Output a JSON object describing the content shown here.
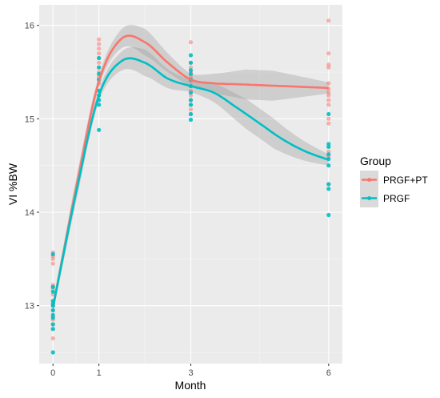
{
  "chart_data": {
    "type": "scatter",
    "xlabel": "Month",
    "ylabel": "VI %BW",
    "x_ticks": [
      0,
      1,
      3,
      6
    ],
    "x_tick_labels": [
      "0",
      "1",
      "3",
      "6"
    ],
    "y_ticks": [
      13,
      14,
      15,
      16
    ],
    "y_tick_labels": [
      "13",
      "14",
      "15",
      "16"
    ],
    "xlim": [
      -0.3,
      6.3
    ],
    "ylim": [
      12.38,
      16.22
    ],
    "grid": true,
    "legend": {
      "title": "Group",
      "position": "right"
    },
    "series": [
      {
        "name": "PRGF+PT",
        "color": "#F8766D",
        "points": [
          [
            0,
            13.57
          ],
          [
            0,
            13.53
          ],
          [
            0,
            13.5
          ],
          [
            0,
            13.45
          ],
          [
            0,
            13.22
          ],
          [
            0,
            13.2
          ],
          [
            0,
            13.18
          ],
          [
            0,
            13.12
          ],
          [
            0,
            13.05
          ],
          [
            0,
            13.0
          ],
          [
            0,
            12.95
          ],
          [
            0,
            12.88
          ],
          [
            0,
            12.85
          ],
          [
            0,
            12.8
          ],
          [
            0,
            12.75
          ],
          [
            0,
            12.65
          ],
          [
            1,
            15.85
          ],
          [
            1,
            15.8
          ],
          [
            1,
            15.75
          ],
          [
            1,
            15.7
          ],
          [
            1,
            15.65
          ],
          [
            1,
            15.6
          ],
          [
            1,
            15.55
          ],
          [
            1,
            15.5
          ],
          [
            1,
            15.45
          ],
          [
            1,
            15.42
          ],
          [
            1,
            15.38
          ],
          [
            3,
            15.82
          ],
          [
            3,
            15.6
          ],
          [
            3,
            15.55
          ],
          [
            3,
            15.5
          ],
          [
            3,
            15.45
          ],
          [
            3,
            15.4
          ],
          [
            3,
            15.35
          ],
          [
            3,
            15.3
          ],
          [
            3,
            15.25
          ],
          [
            3,
            15.2
          ],
          [
            3,
            15.15
          ],
          [
            3,
            15.1
          ],
          [
            3,
            15.05
          ],
          [
            6,
            16.05
          ],
          [
            6,
            15.7
          ],
          [
            6,
            15.58
          ],
          [
            6,
            15.55
          ],
          [
            6,
            15.38
          ],
          [
            6,
            15.32
          ],
          [
            6,
            15.28
          ],
          [
            6,
            15.25
          ],
          [
            6,
            15.2
          ],
          [
            6,
            15.15
          ],
          [
            6,
            15.0
          ],
          [
            6,
            14.95
          ],
          [
            6,
            14.7
          ],
          [
            6,
            14.65
          ],
          [
            6,
            14.6
          ],
          [
            6,
            14.3
          ]
        ],
        "smooth": [
          [
            0,
            12.98
          ],
          [
            0.5,
            14.25
          ],
          [
            1,
            15.4
          ],
          [
            1.5,
            15.86
          ],
          [
            2,
            15.82
          ],
          [
            2.5,
            15.6
          ],
          [
            3,
            15.42
          ],
          [
            3.5,
            15.38
          ],
          [
            4,
            15.37
          ],
          [
            4.5,
            15.36
          ],
          [
            5,
            15.35
          ],
          [
            5.5,
            15.34
          ],
          [
            6,
            15.33
          ]
        ]
      },
      {
        "name": "PRGF",
        "color": "#00BFC4",
        "points": [
          [
            0,
            13.55
          ],
          [
            0,
            13.2
          ],
          [
            0,
            13.15
          ],
          [
            0,
            13.05
          ],
          [
            0,
            13.02
          ],
          [
            0,
            13.0
          ],
          [
            0,
            12.95
          ],
          [
            0,
            12.9
          ],
          [
            0,
            12.87
          ],
          [
            0,
            12.8
          ],
          [
            0,
            12.75
          ],
          [
            0,
            12.5
          ],
          [
            1,
            15.65
          ],
          [
            1,
            15.55
          ],
          [
            1,
            15.48
          ],
          [
            1,
            15.42
          ],
          [
            1,
            15.3
          ],
          [
            1,
            15.25
          ],
          [
            1,
            15.2
          ],
          [
            1,
            15.15
          ],
          [
            1,
            14.88
          ],
          [
            3,
            15.68
          ],
          [
            3,
            15.6
          ],
          [
            3,
            15.52
          ],
          [
            3,
            15.48
          ],
          [
            3,
            15.42
          ],
          [
            3,
            15.35
          ],
          [
            3,
            15.28
          ],
          [
            3,
            15.2
          ],
          [
            3,
            15.15
          ],
          [
            3,
            15.05
          ],
          [
            3,
            14.99
          ],
          [
            6,
            15.05
          ],
          [
            6,
            14.73
          ],
          [
            6,
            14.7
          ],
          [
            6,
            14.62
          ],
          [
            6,
            14.57
          ],
          [
            6,
            14.5
          ],
          [
            6,
            14.3
          ],
          [
            6,
            14.25
          ],
          [
            6,
            13.97
          ]
        ],
        "smooth": [
          [
            0,
            12.98
          ],
          [
            0.5,
            14.2
          ],
          [
            1,
            15.25
          ],
          [
            1.5,
            15.62
          ],
          [
            2,
            15.6
          ],
          [
            2.5,
            15.43
          ],
          [
            3,
            15.35
          ],
          [
            3.5,
            15.28
          ],
          [
            4,
            15.12
          ],
          [
            4.5,
            14.95
          ],
          [
            5,
            14.78
          ],
          [
            5.5,
            14.65
          ],
          [
            6,
            14.56
          ]
        ]
      }
    ]
  }
}
